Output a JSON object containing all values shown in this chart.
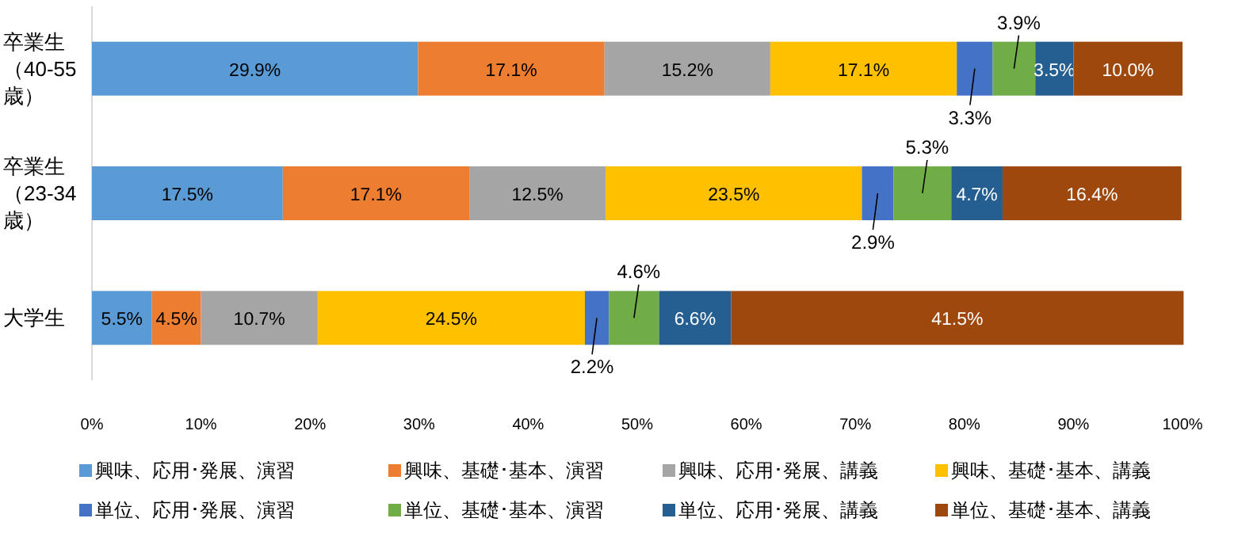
{
  "chart_data": {
    "type": "bar",
    "orientation": "horizontal",
    "stacked": true,
    "categories": [
      "卒業生（40-55歳）",
      "卒業生（23-34歳）",
      "大学生"
    ],
    "series": [
      {
        "name": "興味、応用･発展、演習",
        "color": "#5b9bd5",
        "values": [
          29.9,
          17.5,
          5.5
        ],
        "value_labels": [
          "29.9%",
          "17.5%",
          "5.5%"
        ]
      },
      {
        "name": "興味、基礎･基本、演習",
        "color": "#ed7d31",
        "values": [
          17.1,
          17.1,
          4.5
        ],
        "value_labels": [
          "17.1%",
          "17.1%",
          "4.5%"
        ]
      },
      {
        "name": "興味、応用･発展、講義",
        "color": "#a5a5a5",
        "values": [
          15.2,
          12.5,
          10.7
        ],
        "value_labels": [
          "15.2%",
          "12.5%",
          "10.7%"
        ]
      },
      {
        "name": "興味、基礎･基本、講義",
        "color": "#ffc000",
        "values": [
          17.1,
          23.5,
          24.5
        ],
        "value_labels": [
          "17.1%",
          "23.5%",
          "24.5%"
        ]
      },
      {
        "name": "単位、応用･発展、演習",
        "color": "#4472c4",
        "values": [
          3.3,
          2.9,
          2.2
        ],
        "value_labels": [
          "3.3%",
          "2.9%",
          "2.2%"
        ]
      },
      {
        "name": "単位、基礎･基本、演習",
        "color": "#70ad47",
        "values": [
          3.9,
          5.3,
          4.6
        ],
        "value_labels": [
          "3.9%",
          "5.3%",
          "4.6%"
        ]
      },
      {
        "name": "単位、応用･発展、講義",
        "color": "#255e91",
        "values": [
          3.5,
          4.7,
          6.6
        ],
        "value_labels": [
          "3.5%",
          "4.7%",
          "6.6%"
        ]
      },
      {
        "name": "単位、基礎･基本、講義",
        "color": "#9e480e",
        "values": [
          10.0,
          16.4,
          41.5
        ],
        "value_labels": [
          "10.0%",
          "16.4%",
          "41.5%"
        ]
      }
    ],
    "xlim": [
      0,
      100
    ],
    "xticks": [
      {
        "value": 0,
        "label": "0%"
      },
      {
        "value": 10,
        "label": "10%"
      },
      {
        "value": 20,
        "label": "20%"
      },
      {
        "value": 30,
        "label": "30%"
      },
      {
        "value": 40,
        "label": "40%"
      },
      {
        "value": 50,
        "label": "50%"
      },
      {
        "value": 60,
        "label": "60%"
      },
      {
        "value": 70,
        "label": "70%"
      },
      {
        "value": 80,
        "label": "80%"
      },
      {
        "value": 90,
        "label": "90%"
      },
      {
        "value": 100,
        "label": "100%"
      }
    ],
    "grid": false,
    "legend": "bottom"
  }
}
